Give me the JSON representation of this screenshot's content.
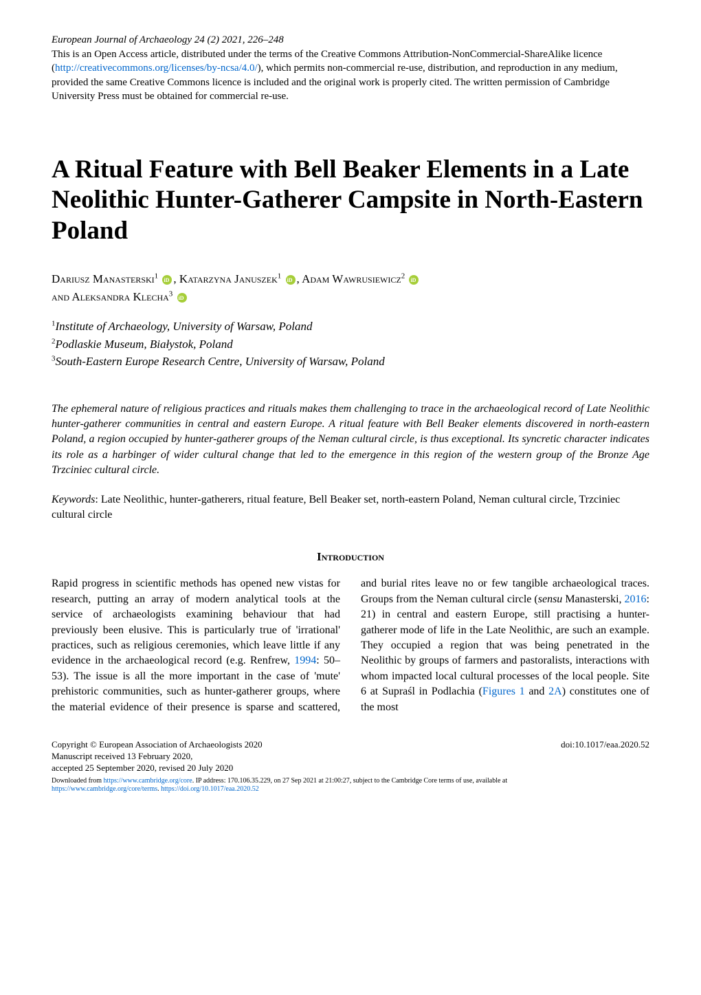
{
  "header": {
    "journal_citation": "European Journal of Archaeology 24 (2) 2021, 226–248",
    "license_pre": "This is an Open Access article, distributed under the terms of the Creative Commons Attribution-NonCommercial-ShareAlike licence (",
    "license_url": "http://creativecommons.org/licenses/by-ncsa/4.0/",
    "license_post": "), which permits non-commercial re-use, distribution, and reproduction in any medium, provided the same Creative Commons licence is included and the original work is properly cited. The written permission of Cambridge University Press must be obtained for commercial re-use."
  },
  "title": "A Ritual Feature with Bell Beaker Elements in a Late Neolithic Hunter-Gatherer Campsite in North-Eastern Poland",
  "authors": {
    "list": "Dariusz Manasterski",
    "sup1": "1",
    "sep1": ", ",
    "name2": "Katarzyna Januszek",
    "sup2": "1",
    "sep2": ", ",
    "name3": "Adam Wawrusiewicz",
    "sup3": "2",
    "and": "and ",
    "name4": "Aleksandra Klecha",
    "sup4": "3"
  },
  "affiliations": {
    "a1_sup": "1",
    "a1": "Institute of Archaeology, University of Warsaw, Poland",
    "a2_sup": "2",
    "a2": "Podlaskie Museum, Białystok, Poland",
    "a3_sup": "3",
    "a3": "South-Eastern Europe Research Centre, University of Warsaw, Poland"
  },
  "abstract": "The ephemeral nature of religious practices and rituals makes them challenging to trace in the archaeological record of Late Neolithic hunter-gatherer communities in central and eastern Europe. A ritual feature with Bell Beaker elements discovered in north-eastern Poland, a region occupied by hunter-gatherer groups of the Neman cultural circle, is thus exceptional. Its syncretic character indicates its role as a harbinger of wider cultural change that led to the emergence in this region of the western group of the Bronze Age Trzciniec cultural circle.",
  "keywords": {
    "label": "Keywords",
    "text": ": Late Neolithic, hunter-gatherers, ritual feature, Bell Beaker set, north-eastern Poland, Neman cultural circle, Trzciniec cultural circle"
  },
  "section_heading": "Introduction",
  "body_col1": "Rapid progress in scientific methods has opened new vistas for research, putting an array of modern analytical tools at the service of archaeologists examining behaviour that had previously been elusive. This is particularly true of 'irrational' practices, such as religious ceremonies, which leave little if any evidence in the archaeological record (e.g. Renfrew, ",
  "body_ref1_year": "1994",
  "body_col1b": ": 50–53). The issue is all the more important in the case of 'mute' prehistoric communities, such as hunter-gatherer groups, where the material evidence of their presence is sparse and scattered, and burial rites leave no or few tangible archaeological traces. Groups from the Neman cultural circle (",
  "body_sensu": "sensu",
  "body_col2a": " Manasterski, ",
  "body_ref2_year": "2016",
  "body_col2b": ": 21) in central and eastern Europe, still practising a hunter-gatherer mode of life in the Late Neolithic, are such an example. They occupied a region that was being penetrated in the Neolithic by groups of farmers and pastoralists, interactions with whom impacted local cultural processes of the local people. Site 6 at Supraśl in Podlachia (",
  "body_fig1": "Figures 1",
  "body_and": " and ",
  "body_fig2": "2A",
  "body_col2c": ") constitutes one of the most",
  "footer": {
    "copyright": "Copyright © European Association of Archaeologists 2020",
    "doi": "doi:10.1017/eaa.2020.52",
    "received": "Manuscript received 13 February 2020,",
    "accepted": "accepted 25 September 2020, revised 20 July 2020",
    "download_pre": "Downloaded from ",
    "download_url": "https://www.cambridge.org/core",
    "download_mid": ". IP address: 170.106.35.229, on 27 Sep 2021 at 21:00:27, subject to the Cambridge Core terms of use, available at",
    "terms_url": "https://www.cambridge.org/core/terms",
    "terms_sep": ". ",
    "doi_url": "https://doi.org/10.1017/eaa.2020.52"
  }
}
